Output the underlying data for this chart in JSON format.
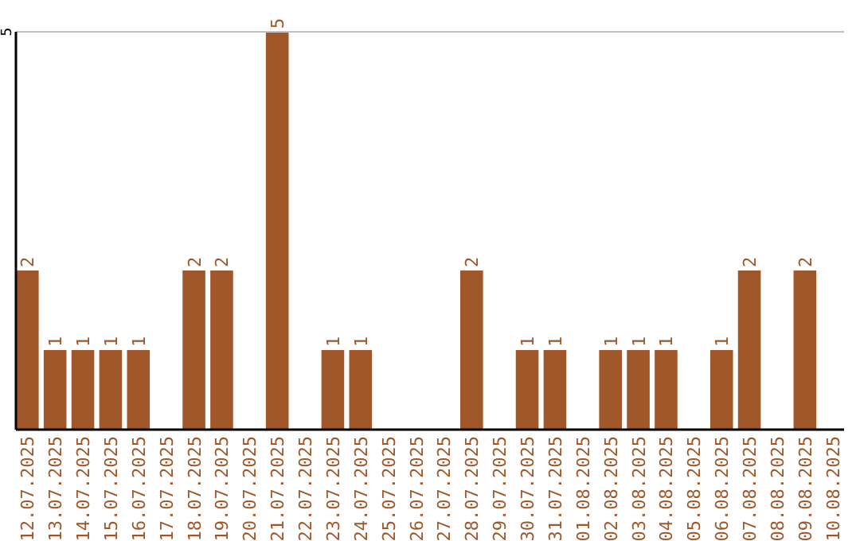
{
  "chart_data": {
    "type": "bar",
    "categories": [
      "12.07.2025",
      "13.07.2025",
      "14.07.2025",
      "15.07.2025",
      "16.07.2025",
      "17.07.2025",
      "18.07.2025",
      "19.07.2025",
      "20.07.2025",
      "21.07.2025",
      "22.07.2025",
      "23.07.2025",
      "24.07.2025",
      "25.07.2025",
      "26.07.2025",
      "27.07.2025",
      "28.07.2025",
      "29.07.2025",
      "30.07.2025",
      "31.07.2025",
      "01.08.2025",
      "02.08.2025",
      "03.08.2025",
      "04.08.2025",
      "05.08.2025",
      "06.08.2025",
      "07.08.2025",
      "08.08.2025",
      "09.08.2025",
      "10.08.2025"
    ],
    "values": [
      2,
      1,
      1,
      1,
      1,
      0,
      2,
      2,
      0,
      5,
      0,
      1,
      1,
      0,
      0,
      0,
      2,
      0,
      1,
      1,
      0,
      1,
      1,
      1,
      0,
      1,
      2,
      0,
      2,
      0
    ],
    "value_labels": [
      "2",
      "1",
      "1",
      "1",
      "1",
      null,
      "2",
      "2",
      null,
      "5",
      null,
      "1",
      "1",
      null,
      null,
      null,
      "2",
      null,
      "1",
      "1",
      null,
      "1",
      "1",
      "1",
      null,
      "1",
      "2",
      null,
      "2",
      null
    ],
    "color": "#a0582a",
    "ylim": [
      0,
      5
    ],
    "yticks": [
      5
    ]
  }
}
